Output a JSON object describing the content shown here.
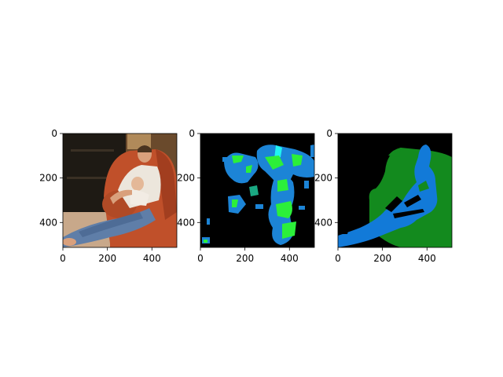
{
  "figure": {
    "background": "#ffffff",
    "layout": "1x3 image panels"
  },
  "chart_data": [
    {
      "type": "heatmap",
      "panel": "input-photo",
      "content": "photo",
      "xlim": [
        0,
        512
      ],
      "ylim": [
        512,
        0
      ],
      "x_ticks": [
        0,
        200,
        400
      ],
      "y_ticks": [
        0,
        200,
        400
      ],
      "grid": false,
      "colors": {
        "background": "#6a4a2c",
        "window": "#1e1a14",
        "chair": "#c0502a",
        "skin": "#d9a07c",
        "shirt": "#ece6dc",
        "jeans": "#5f7ea8",
        "floor": "#c8a88a"
      }
    },
    {
      "type": "heatmap",
      "panel": "predicted-segmentation",
      "content": "segmentation",
      "xlim": [
        0,
        512
      ],
      "ylim": [
        512,
        0
      ],
      "x_ticks": [
        0,
        200,
        400
      ],
      "y_ticks": [
        0,
        200,
        400
      ],
      "grid": false,
      "colors": {
        "background": "#000000",
        "blue": "#1c84d6",
        "green": "#2cef3a",
        "cyan": "#20f4f0",
        "teal": "#1aa882"
      }
    },
    {
      "type": "heatmap",
      "panel": "ground-truth-segmentation",
      "content": "segmentation",
      "xlim": [
        0,
        512
      ],
      "ylim": [
        512,
        0
      ],
      "x_ticks": [
        0,
        200,
        400
      ],
      "y_ticks": [
        0,
        200,
        400
      ],
      "grid": false,
      "colors": {
        "background": "#000000",
        "chair": "#138a1e",
        "person": "#127ad8"
      }
    }
  ]
}
